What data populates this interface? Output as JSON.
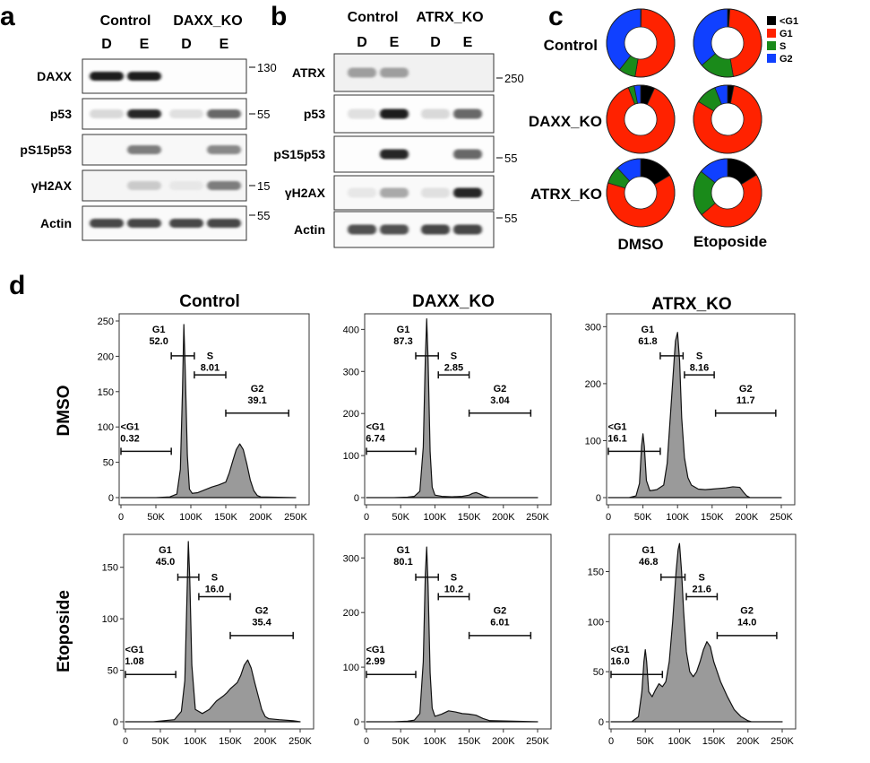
{
  "panels": {
    "a": "a",
    "b": "b",
    "c": "c",
    "d": "d"
  },
  "colors": {
    "lt_g1": "#000000",
    "g1": "#ff2200",
    "s": "#1a8a1a",
    "g2": "#1040ff",
    "histogram_fill": "#9a9a9a"
  },
  "panel_a": {
    "group_labels": [
      "Control",
      "DAXX_KO"
    ],
    "lane_labels": [
      "D",
      "E",
      "D",
      "E"
    ],
    "blots": [
      {
        "label": "DAXX",
        "marker": "130",
        "bands": [
          0.95,
          0.95,
          0,
          0
        ],
        "bg": 0.02
      },
      {
        "label": "p53",
        "marker": "55",
        "bands": [
          0.08,
          0.9,
          0.05,
          0.6
        ],
        "bg": 0.02
      },
      {
        "label": "pS15p53",
        "marker": "",
        "bands": [
          0,
          0.5,
          0,
          0.45
        ],
        "bg": 0.06
      },
      {
        "label": "γH2AX",
        "marker": "15",
        "bands": [
          0,
          0.15,
          0.02,
          0.5
        ],
        "bg": 0.08
      },
      {
        "label": "Actin",
        "marker": "55",
        "bands": [
          0.75,
          0.75,
          0.75,
          0.75
        ],
        "bg": 0.04
      }
    ]
  },
  "panel_b": {
    "group_labels": [
      "Control",
      "ATRX_KO"
    ],
    "lane_labels": [
      "D",
      "E",
      "D",
      "E"
    ],
    "blots": [
      {
        "label": "ATRX",
        "marker": "250",
        "bands": [
          0.35,
          0.35,
          0,
          0
        ],
        "bg": 0.12
      },
      {
        "label": "p53",
        "marker": "",
        "bands": [
          0.05,
          0.95,
          0.08,
          0.6
        ],
        "bg": 0.02
      },
      {
        "label": "pS15p53",
        "marker": "55",
        "bands": [
          0,
          0.9,
          0,
          0.6
        ],
        "bg": 0.02
      },
      {
        "label": "γH2AX",
        "marker": "",
        "bands": [
          0.02,
          0.3,
          0.05,
          0.9
        ],
        "bg": 0.05
      },
      {
        "label": "Actin",
        "marker": "55",
        "bands": [
          0.7,
          0.7,
          0.75,
          0.75
        ],
        "bg": 0.04
      }
    ]
  },
  "panel_c": {
    "legend": [
      "<G1",
      "G1",
      "S",
      "G2"
    ],
    "row_labels": [
      "Control",
      "DAXX_KO",
      "ATRX_KO"
    ],
    "col_labels": [
      "DMSO",
      "Etoposide"
    ],
    "donuts": [
      [
        {
          "lt_g1": 0.32,
          "g1": 52.0,
          "s": 8.01,
          "g2": 39.1
        },
        {
          "lt_g1": 1.08,
          "g1": 45.0,
          "s": 16.0,
          "g2": 35.4
        }
      ],
      [
        {
          "lt_g1": 6.74,
          "g1": 87.3,
          "s": 2.85,
          "g2": 3.04
        },
        {
          "lt_g1": 2.99,
          "g1": 80.1,
          "s": 10.2,
          "g2": 6.01
        }
      ],
      [
        {
          "lt_g1": 16.1,
          "g1": 61.8,
          "s": 8.16,
          "g2": 11.7
        },
        {
          "lt_g1": 16.0,
          "g1": 46.8,
          "s": 21.6,
          "g2": 14.0
        }
      ]
    ]
  },
  "panel_d": {
    "col_titles": [
      "Control",
      "DAXX_KO",
      "ATRX_KO"
    ],
    "row_labels": [
      "DMSO",
      "Etoposide"
    ],
    "x_ticks": [
      "0",
      "50K",
      "100K",
      "150K",
      "200K",
      "250K"
    ]
  },
  "chart_data": [
    {
      "type": "area",
      "title": "Control",
      "ylabel": "DMSO",
      "xlim": [
        0,
        250000
      ],
      "ylim": [
        0,
        250
      ],
      "y_ticks": [
        0,
        50,
        100,
        150,
        200,
        250
      ],
      "x": [
        0,
        20000,
        50000,
        70000,
        80000,
        85000,
        88000,
        90000,
        92000,
        95000,
        98000,
        102000,
        110000,
        120000,
        130000,
        140000,
        150000,
        155000,
        160000,
        165000,
        170000,
        175000,
        180000,
        185000,
        190000,
        195000,
        200000,
        250000
      ],
      "y": [
        0,
        0,
        0,
        1,
        5,
        40,
        150,
        245,
        180,
        60,
        12,
        6,
        7,
        11,
        15,
        18,
        22,
        35,
        52,
        68,
        76,
        68,
        48,
        25,
        10,
        3,
        1,
        0
      ],
      "gates": [
        {
          "label": "G1",
          "value": "52.0",
          "range": [
            72000,
            105000
          ]
        },
        {
          "label": "S",
          "value": "8.01",
          "range": [
            105000,
            150000
          ]
        },
        {
          "label": "G2",
          "value": "39.1",
          "range": [
            150000,
            240000
          ]
        },
        {
          "label": "<G1",
          "value": "0.32",
          "range": [
            0,
            72000
          ]
        }
      ]
    },
    {
      "type": "area",
      "title": "DAXX_KO",
      "ylabel": "DMSO",
      "xlim": [
        0,
        250000
      ],
      "ylim": [
        0,
        420
      ],
      "y_ticks": [
        0,
        100,
        200,
        300,
        400
      ],
      "x": [
        0,
        40000,
        60000,
        70000,
        78000,
        83000,
        86000,
        88000,
        90000,
        93000,
        96000,
        100000,
        110000,
        125000,
        140000,
        150000,
        155000,
        160000,
        165000,
        170000,
        175000,
        180000,
        250000
      ],
      "y": [
        0,
        0,
        1,
        3,
        15,
        120,
        330,
        425,
        330,
        110,
        25,
        6,
        3,
        2,
        3,
        6,
        10,
        12,
        9,
        5,
        2,
        0,
        0
      ],
      "gates": [
        {
          "label": "G1",
          "value": "87.3",
          "range": [
            72000,
            105000
          ]
        },
        {
          "label": "S",
          "value": "2.85",
          "range": [
            105000,
            150000
          ]
        },
        {
          "label": "G2",
          "value": "3.04",
          "range": [
            150000,
            240000
          ]
        },
        {
          "label": "<G1",
          "value": "6.74",
          "range": [
            0,
            72000
          ]
        }
      ]
    },
    {
      "type": "area",
      "title": "ATRX_KO",
      "ylabel": "DMSO",
      "xlim": [
        0,
        250000
      ],
      "ylim": [
        0,
        310
      ],
      "y_ticks": [
        0,
        100,
        200,
        300
      ],
      "x": [
        0,
        30000,
        40000,
        45000,
        48000,
        50000,
        52000,
        55000,
        60000,
        70000,
        80000,
        85000,
        90000,
        95000,
        97000,
        100000,
        103000,
        106000,
        110000,
        115000,
        120000,
        130000,
        140000,
        150000,
        160000,
        170000,
        180000,
        190000,
        195000,
        200000,
        205000,
        250000
      ],
      "y": [
        0,
        0,
        3,
        25,
        90,
        112,
        90,
        30,
        12,
        14,
        22,
        60,
        150,
        240,
        275,
        290,
        240,
        140,
        70,
        35,
        22,
        15,
        14,
        15,
        16,
        17,
        19,
        18,
        10,
        3,
        0,
        0
      ],
      "gates": [
        {
          "label": "G1",
          "value": "61.8",
          "range": [
            75000,
            108000
          ]
        },
        {
          "label": "S",
          "value": "8.16",
          "range": [
            110000,
            153000
          ]
        },
        {
          "label": "G2",
          "value": "11.7",
          "range": [
            155000,
            242000
          ]
        },
        {
          "label": "<G1",
          "value": "16.1",
          "range": [
            0,
            75000
          ]
        }
      ]
    },
    {
      "type": "area",
      "title": "Control",
      "ylabel": "Etoposide",
      "xlim": [
        0,
        250000
      ],
      "ylim": [
        0,
        175
      ],
      "y_ticks": [
        0,
        50,
        100,
        150
      ],
      "x": [
        0,
        40000,
        70000,
        80000,
        85000,
        88000,
        90000,
        92000,
        95000,
        100000,
        110000,
        120000,
        130000,
        140000,
        145000,
        150000,
        155000,
        160000,
        165000,
        170000,
        175000,
        180000,
        185000,
        190000,
        195000,
        200000,
        205000,
        220000,
        240000,
        250000
      ],
      "y": [
        0,
        0,
        2,
        10,
        40,
        120,
        175,
        140,
        55,
        12,
        8,
        12,
        20,
        25,
        28,
        32,
        35,
        38,
        45,
        55,
        60,
        52,
        38,
        25,
        12,
        5,
        3,
        2,
        1,
        0
      ],
      "gates": [
        {
          "label": "G1",
          "value": "45.0",
          "range": [
            75000,
            105000
          ]
        },
        {
          "label": "S",
          "value": "16.0",
          "range": [
            105000,
            150000
          ]
        },
        {
          "label": "G2",
          "value": "35.4",
          "range": [
            150000,
            240000
          ]
        },
        {
          "label": "<G1",
          "value": "1.08",
          "range": [
            0,
            72000
          ]
        }
      ]
    },
    {
      "type": "area",
      "title": "DAXX_KO",
      "ylabel": "Etoposide",
      "xlim": [
        0,
        250000
      ],
      "ylim": [
        0,
        330
      ],
      "y_ticks": [
        0,
        100,
        200,
        300
      ],
      "x": [
        0,
        40000,
        60000,
        70000,
        78000,
        83000,
        86000,
        88000,
        90000,
        93000,
        96000,
        100000,
        110000,
        120000,
        130000,
        140000,
        150000,
        160000,
        170000,
        180000,
        250000
      ],
      "y": [
        0,
        0,
        1,
        3,
        15,
        110,
        270,
        320,
        250,
        90,
        25,
        10,
        14,
        20,
        18,
        15,
        14,
        12,
        6,
        2,
        0
      ],
      "gates": [
        {
          "label": "G1",
          "value": "80.1",
          "range": [
            72000,
            105000
          ]
        },
        {
          "label": "S",
          "value": "10.2",
          "range": [
            105000,
            150000
          ]
        },
        {
          "label": "G2",
          "value": "6.01",
          "range": [
            150000,
            240000
          ]
        },
        {
          "label": "<G1",
          "value": "2.99",
          "range": [
            0,
            72000
          ]
        }
      ]
    },
    {
      "type": "area",
      "title": "ATRX_KO",
      "ylabel": "Etoposide",
      "xlim": [
        0,
        250000
      ],
      "ylim": [
        0,
        180
      ],
      "y_ticks": [
        0,
        50,
        100,
        150
      ],
      "x": [
        0,
        30000,
        40000,
        45000,
        48000,
        50000,
        52000,
        55000,
        60000,
        65000,
        70000,
        75000,
        80000,
        85000,
        90000,
        95000,
        98000,
        100000,
        103000,
        106000,
        110000,
        115000,
        120000,
        125000,
        130000,
        135000,
        140000,
        145000,
        150000,
        160000,
        170000,
        180000,
        190000,
        200000,
        205000,
        250000
      ],
      "y": [
        0,
        0,
        5,
        30,
        60,
        72,
        60,
        30,
        25,
        32,
        38,
        35,
        40,
        60,
        100,
        150,
        172,
        178,
        150,
        110,
        70,
        50,
        45,
        50,
        60,
        72,
        80,
        75,
        60,
        40,
        25,
        12,
        5,
        1,
        0,
        0
      ],
      "gates": [
        {
          "label": "G1",
          "value": "46.8",
          "range": [
            73000,
            108000
          ]
        },
        {
          "label": "S",
          "value": "21.6",
          "range": [
            110000,
            155000
          ]
        },
        {
          "label": "G2",
          "value": "14.0",
          "range": [
            155000,
            242000
          ]
        },
        {
          "label": "<G1",
          "value": "16.0",
          "range": [
            0,
            75000
          ]
        }
      ]
    }
  ]
}
